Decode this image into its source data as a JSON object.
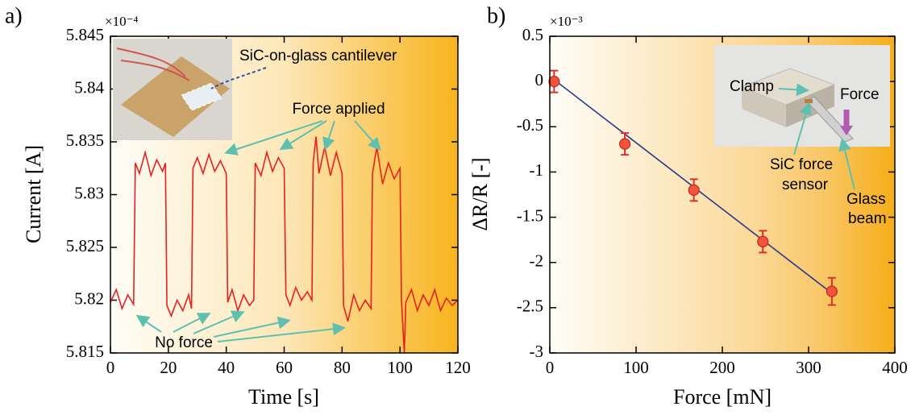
{
  "chart_data": [
    {
      "type": "line",
      "panel_label": "a)",
      "x_label": "Time [s]",
      "y_label": "Current [A]",
      "y_multiplier": "×10⁻⁴",
      "xlim": [
        0,
        120
      ],
      "xticks": [
        0,
        20,
        40,
        60,
        80,
        100,
        120
      ],
      "ylim": [
        5.815,
        5.845
      ],
      "yticks": [
        5.815,
        5.82,
        5.825,
        5.83,
        5.835,
        5.84,
        5.845
      ],
      "color": "#e8211e",
      "x": [
        0,
        2,
        4,
        6,
        8,
        8.6,
        10,
        12,
        14,
        16,
        18,
        19,
        19.5,
        21,
        23,
        25,
        27,
        28,
        28.5,
        30,
        32,
        34,
        36,
        38,
        40,
        40.5,
        42,
        44,
        46,
        48,
        49.5,
        50,
        52,
        54,
        56,
        58,
        60,
        60.6,
        62,
        64,
        66,
        68,
        69.6,
        70,
        71,
        72,
        74,
        76,
        78,
        80,
        80.5,
        82,
        84,
        86,
        88,
        90,
        90.5,
        92,
        94,
        96,
        98,
        100,
        100.5,
        101.5,
        102,
        104,
        106,
        108,
        110,
        112,
        114,
        116,
        118,
        120
      ],
      "values": [
        5.8198,
        5.821,
        5.8192,
        5.8205,
        5.8196,
        5.833,
        5.832,
        5.834,
        5.8318,
        5.8333,
        5.8322,
        5.833,
        5.8195,
        5.8185,
        5.82,
        5.819,
        5.8205,
        5.8192,
        5.8325,
        5.8335,
        5.832,
        5.8338,
        5.8322,
        5.8332,
        5.832,
        5.8198,
        5.821,
        5.819,
        5.8205,
        5.8195,
        5.82,
        5.833,
        5.8318,
        5.834,
        5.8322,
        5.8335,
        5.8325,
        5.8205,
        5.8195,
        5.8212,
        5.82,
        5.8208,
        5.82,
        5.833,
        5.8355,
        5.832,
        5.8345,
        5.8318,
        5.834,
        5.832,
        5.8195,
        5.818,
        5.8205,
        5.819,
        5.82,
        5.8192,
        5.832,
        5.8345,
        5.831,
        5.833,
        5.8315,
        5.8325,
        5.82,
        5.815,
        5.8198,
        5.821,
        5.819,
        5.8205,
        5.8195,
        5.821,
        5.819,
        5.8202,
        5.8195,
        5.82
      ],
      "annotations": {
        "cantilever": "SiC-on-glass cantilever",
        "force_applied": "Force applied",
        "no_force": "No force"
      }
    },
    {
      "type": "scatter",
      "panel_label": "b)",
      "x_label": "Force [mN]",
      "y_label": "ΔR/R [-]",
      "y_multiplier": "×10⁻³",
      "xlim": [
        0,
        400
      ],
      "xticks": [
        0,
        100,
        200,
        300,
        400
      ],
      "ylim": [
        -3,
        0.5
      ],
      "yticks": [
        -3,
        -2.5,
        -2,
        -1.5,
        -1,
        -0.5,
        0,
        0.5
      ],
      "color": "#f0553a",
      "x": [
        5,
        87,
        167,
        247,
        327
      ],
      "values": [
        0,
        -0.69,
        -1.2,
        -1.77,
        -2.32
      ],
      "errors": [
        0.12,
        0.12,
        0.12,
        0.12,
        0.15
      ],
      "fit": {
        "color": "#2b3a8f",
        "x": [
          5,
          327
        ],
        "values": [
          0.02,
          -2.34
        ]
      },
      "annotations": {
        "clamp": "Clamp",
        "force": "Force",
        "sensor": [
          "SiC force",
          "sensor"
        ],
        "beam": [
          "Glass",
          "beam"
        ]
      }
    }
  ]
}
